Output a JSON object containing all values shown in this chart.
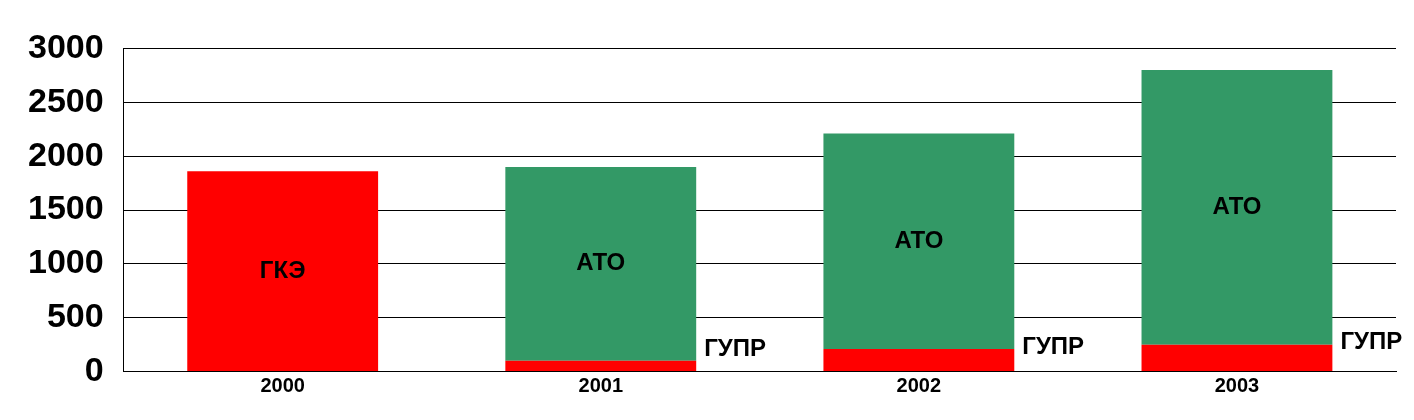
{
  "chart_data": {
    "type": "bar",
    "stacked": true,
    "categories": [
      "2000",
      "2001",
      "2002",
      "2003"
    ],
    "series": [
      {
        "name": "ГКЭ",
        "color": "#ff0000",
        "values": [
          1860,
          null,
          null,
          null
        ]
      },
      {
        "name": "ГУПР",
        "color": "#ff0000",
        "values": [
          null,
          100,
          210,
          250
        ]
      },
      {
        "name": "АТО",
        "color": "#339966",
        "values": [
          null,
          1800,
          2000,
          2550
        ]
      }
    ],
    "ylim": [
      0,
      3000
    ],
    "yticks": [
      0,
      500,
      1000,
      1500,
      2000,
      2500,
      3000
    ],
    "grid": "y",
    "legend": false
  }
}
